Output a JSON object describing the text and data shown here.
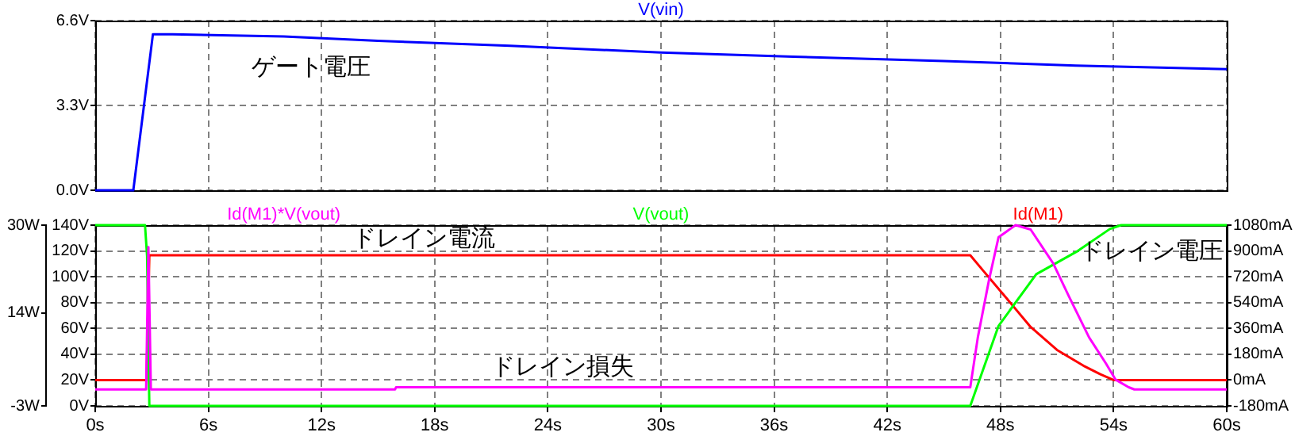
{
  "chart_data": [
    {
      "type": "line",
      "series": [
        {
          "name": "V(vin)",
          "color": "#0000ff",
          "x": [
            0,
            2.02,
            3.06,
            4.1,
            10,
            15,
            22,
            30,
            37,
            45,
            52,
            60
          ],
          "values": [
            0,
            0,
            6.07,
            6.07,
            5.98,
            5.81,
            5.62,
            5.36,
            5.2,
            5.03,
            4.85,
            4.71
          ]
        }
      ],
      "xlim": [
        0,
        60
      ],
      "xticks": [
        {
          "value": 0,
          "label": null
        },
        {
          "value": 6,
          "label": null
        },
        {
          "value": 12,
          "label": null
        },
        {
          "value": 18,
          "label": null
        },
        {
          "value": 24,
          "label": null
        },
        {
          "value": 30,
          "label": null
        },
        {
          "value": 36,
          "label": null
        },
        {
          "value": 42,
          "label": null
        },
        {
          "value": 48,
          "label": null
        },
        {
          "value": 54,
          "label": null
        },
        {
          "value": 60,
          "label": null
        }
      ],
      "ylim": [
        0,
        6.6
      ],
      "yticks": [
        {
          "value": 0,
          "label": "0.0V"
        },
        {
          "value": 3.3,
          "label": "3.3V"
        },
        {
          "value": 6.6,
          "label": "6.6V"
        }
      ],
      "tick_labels": "y",
      "grid": true,
      "legend": "top",
      "marker": "none",
      "line_style": "solid",
      "annotations": [
        "ゲート電圧"
      ]
    },
    {
      "type": "line",
      "series": [
        {
          "name": "Id(M1)*V(vout)",
          "color": "#ff00ff",
          "axis": "y3",
          "x": [
            0,
            2.7,
            2.82,
            2.95,
            15.9,
            15.95,
            46.4,
            46.8,
            47.4,
            47.9,
            48.8,
            49.6,
            50.8,
            51.6,
            52.7,
            53.6,
            54.1,
            54.8,
            55.1,
            60
          ],
          "values": [
            0,
            0,
            26,
            0,
            0,
            0.4,
            0.4,
            9.5,
            20.1,
            27.8,
            30,
            29.2,
            23,
            17.2,
            9.5,
            4.7,
            1.8,
            0.4,
            0,
            0
          ]
        },
        {
          "name": "V(vout)",
          "color": "#00ff00",
          "x": [
            0,
            2.64,
            2.75,
            2.87,
            46.4,
            47.9,
            49.9,
            52.1,
            53.8,
            54.4,
            60
          ],
          "values": [
            140,
            140,
            116,
            0,
            0,
            62,
            102,
            120,
            137,
            140,
            140
          ]
        },
        {
          "name": "Id(M1)",
          "color": "#ff0000",
          "axis": "y2",
          "x": [
            0,
            2.72,
            2.87,
            46.4,
            47.1,
            48.2,
            49.6,
            51,
            52.4,
            53.3,
            54,
            60
          ],
          "values": [
            0,
            0,
            870,
            870,
            760,
            590,
            370,
            210,
            100,
            40,
            0,
            0
          ]
        }
      ],
      "xlim": [
        0,
        60
      ],
      "xticks": [
        {
          "value": 0,
          "label": "0s"
        },
        {
          "value": 6,
          "label": "6s"
        },
        {
          "value": 12,
          "label": "12s"
        },
        {
          "value": 18,
          "label": "18s"
        },
        {
          "value": 24,
          "label": "24s"
        },
        {
          "value": 30,
          "label": "30s"
        },
        {
          "value": 36,
          "label": "36s"
        },
        {
          "value": 42,
          "label": "42s"
        },
        {
          "value": 48,
          "label": "48s"
        },
        {
          "value": 54,
          "label": "54s"
        },
        {
          "value": 60,
          "label": "60s"
        }
      ],
      "ylim": [
        0,
        140
      ],
      "yticks": [
        {
          "value": 0,
          "label": "0V"
        },
        {
          "value": 20,
          "label": "20V"
        },
        {
          "value": 40,
          "label": "40V"
        },
        {
          "value": 60,
          "label": "60V"
        },
        {
          "value": 80,
          "label": "80V"
        },
        {
          "value": 100,
          "label": "100V"
        },
        {
          "value": 120,
          "label": "120V"
        },
        {
          "value": 140,
          "label": "140V"
        }
      ],
      "y2lim": [
        -180,
        1080
      ],
      "y2ticks": [
        {
          "value": -180,
          "label": "-180mA"
        },
        {
          "value": 0,
          "label": "0mA"
        },
        {
          "value": 180,
          "label": "180mA"
        },
        {
          "value": 360,
          "label": "360mA"
        },
        {
          "value": 540,
          "label": "540mA"
        },
        {
          "value": 720,
          "label": "720mA"
        },
        {
          "value": 900,
          "label": "900mA"
        },
        {
          "value": 1080,
          "label": "1080mA"
        }
      ],
      "y3lim": [
        -3,
        30
      ],
      "y3ticks": [
        {
          "value": -3,
          "label": "-3W"
        },
        {
          "value": 14,
          "label": "14W"
        },
        {
          "value": 30,
          "label": "30W"
        }
      ],
      "grid": true,
      "legend": "top",
      "marker": "none",
      "line_style": "solid",
      "annotations": [
        "ドレイン電流",
        "ドレイン損失",
        "ドレイン電圧"
      ]
    }
  ]
}
